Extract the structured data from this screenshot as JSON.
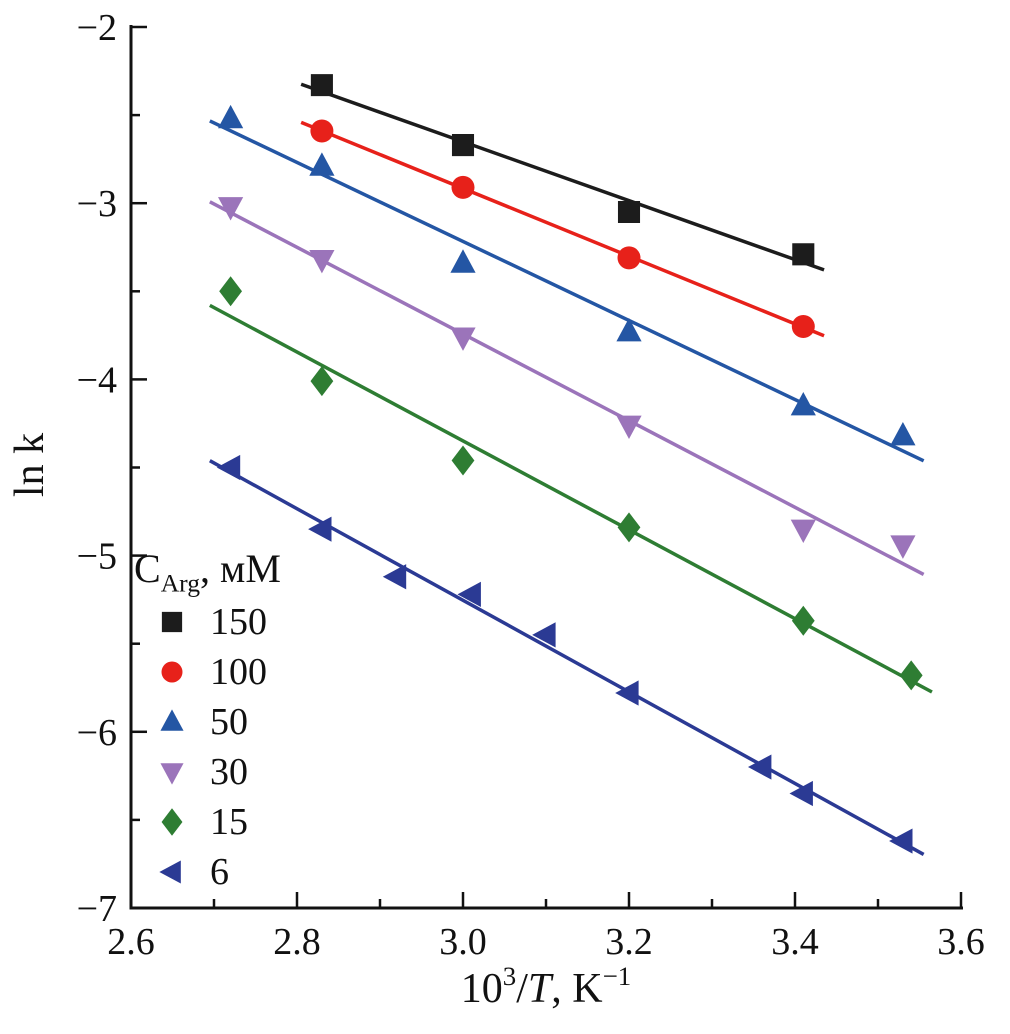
{
  "figure": {
    "background": "#ffffff",
    "text_color": "#111111"
  },
  "chart_data": {
    "type": "scatter",
    "title": "",
    "xlabel": "10³/T, K⁻¹",
    "xlabel_rich": [
      {
        "text": "10"
      },
      {
        "text": "3",
        "sup": true
      },
      {
        "text": "/"
      },
      {
        "text": "T",
        "italic": true
      },
      {
        "text": ", K"
      },
      {
        "text": "−1",
        "sup": true
      }
    ],
    "ylabel": "ln k",
    "xlim": [
      2.6,
      3.6
    ],
    "ylim": [
      -7,
      -2
    ],
    "xticks_major": [
      2.6,
      2.8,
      3.0,
      3.2,
      3.4,
      3.6
    ],
    "xticks_minor": [
      2.7,
      2.9,
      3.1,
      3.3,
      3.5
    ],
    "yticks_major": [
      -7,
      -6,
      -5,
      -4,
      -3,
      -2
    ],
    "yticks_minor": [
      -6.5,
      -5.5,
      -4.5,
      -3.5,
      -2.5
    ],
    "grid": false,
    "legend": {
      "position": "lower-left",
      "title": "C_Arg, мМ",
      "title_rich": [
        {
          "text": "C"
        },
        {
          "text": "Arg",
          "sub": true
        },
        {
          "text": ", мМ"
        }
      ]
    },
    "series": [
      {
        "name": "150",
        "marker": "square",
        "color": "#1c1c1c",
        "trend_line": true,
        "x": [
          2.83,
          3.0,
          3.2,
          3.41
        ],
        "y": [
          -2.33,
          -2.67,
          -3.05,
          -3.29
        ]
      },
      {
        "name": "100",
        "marker": "circle",
        "color": "#e7211a",
        "trend_line": true,
        "x": [
          2.83,
          3.0,
          3.2,
          3.41
        ],
        "y": [
          -2.59,
          -2.91,
          -3.31,
          -3.7
        ]
      },
      {
        "name": "50",
        "marker": "triangle-up",
        "color": "#2456a4",
        "trend_line": true,
        "x": [
          2.72,
          2.83,
          3.0,
          3.2,
          3.41,
          3.53
        ],
        "y": [
          -2.52,
          -2.79,
          -3.34,
          -3.73,
          -4.15,
          -4.32
        ]
      },
      {
        "name": "30",
        "marker": "triangle-down",
        "color": "#9b74ba",
        "trend_line": true,
        "x": [
          2.72,
          2.83,
          3.0,
          3.2,
          3.41,
          3.53
        ],
        "y": [
          -3.02,
          -3.32,
          -3.76,
          -4.26,
          -4.85,
          -4.94
        ]
      },
      {
        "name": "15",
        "marker": "diamond",
        "color": "#2e7d33",
        "trend_line": true,
        "x": [
          2.72,
          2.83,
          3.0,
          3.2,
          3.41,
          3.54
        ],
        "y": [
          -3.5,
          -4.01,
          -4.46,
          -4.84,
          -5.37,
          -5.68
        ]
      },
      {
        "name": "6",
        "marker": "triangle-left",
        "color": "#2b3a94",
        "trend_line": true,
        "x": [
          2.72,
          2.83,
          2.92,
          3.01,
          3.1,
          3.2,
          3.36,
          3.41,
          3.53
        ],
        "y": [
          -4.5,
          -4.85,
          -5.12,
          -5.22,
          -5.45,
          -5.78,
          -6.2,
          -6.35,
          -6.62
        ]
      }
    ]
  }
}
